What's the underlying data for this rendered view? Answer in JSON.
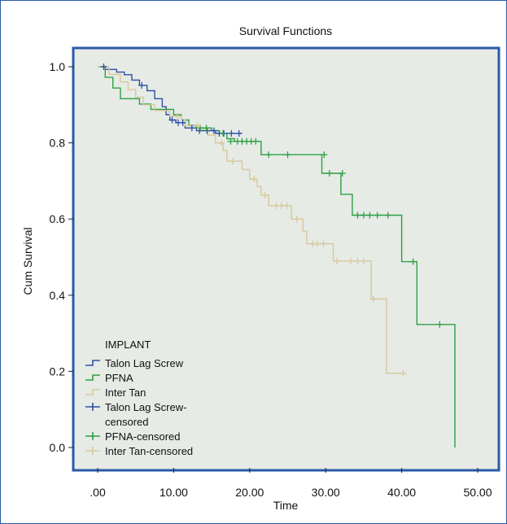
{
  "chart_data": {
    "type": "line",
    "subtype": "kaplan-meier-step",
    "title": "Survival Functions",
    "xlabel": "Time",
    "ylabel": "Cum Survival",
    "xlim": [
      0,
      50
    ],
    "ylim": [
      0,
      1.0
    ],
    "x_ticks": [
      0,
      10,
      20,
      30,
      40,
      50
    ],
    "x_tick_labels": [
      ".00",
      "10.00",
      "20.00",
      "30.00",
      "40.00",
      "50.00"
    ],
    "y_ticks": [
      0,
      0.2,
      0.4,
      0.6,
      0.8,
      1.0
    ],
    "y_tick_labels": [
      "0.0",
      "0.2",
      "0.4",
      "0.6",
      "0.8",
      "1.0"
    ],
    "grid": false,
    "legend_position": "bottom-left",
    "legend_title": "IMPLANT",
    "legend_entries": [
      {
        "label": "Talon Lag Screw",
        "kind": "step",
        "color": "#2f4fa8"
      },
      {
        "label": "PFNA",
        "kind": "step",
        "color": "#2ea043"
      },
      {
        "label": "Inter Tan",
        "kind": "step",
        "color": "#d8c79a"
      },
      {
        "label": "Talon Lag Screw-censored",
        "kind": "censor",
        "color": "#2f4fa8"
      },
      {
        "label": "PFNA-censored",
        "kind": "censor",
        "color": "#2ea043"
      },
      {
        "label": "Inter Tan-censored",
        "kind": "censor",
        "color": "#d8c79a"
      }
    ],
    "plot_background": "#e6ebe6",
    "plot_border_color": "#2a5aa8",
    "series": [
      {
        "name": "Talon Lag Screw",
        "color": "#2f4fa8",
        "steps": [
          [
            0.5,
            1.0
          ],
          [
            1,
            0.993
          ],
          [
            2.5,
            0.986
          ],
          [
            3.5,
            0.979
          ],
          [
            4.5,
            0.965
          ],
          [
            5.5,
            0.951
          ],
          [
            6.5,
            0.937
          ],
          [
            7.5,
            0.916
          ],
          [
            8.5,
            0.895
          ],
          [
            9,
            0.874
          ],
          [
            9.5,
            0.86
          ],
          [
            10.3,
            0.853
          ],
          [
            11.5,
            0.839
          ],
          [
            13,
            0.832
          ],
          [
            14,
            0.832
          ],
          [
            15.5,
            0.825
          ],
          [
            19,
            0.825
          ]
        ],
        "censored": [
          [
            0.8,
            1.0
          ],
          [
            5.8,
            0.951
          ],
          [
            9.8,
            0.86
          ],
          [
            10.6,
            0.853
          ],
          [
            11.2,
            0.853
          ],
          [
            12.4,
            0.839
          ],
          [
            13.4,
            0.832
          ],
          [
            14.4,
            0.832
          ],
          [
            15.3,
            0.832
          ],
          [
            16.0,
            0.825
          ],
          [
            16.6,
            0.825
          ],
          [
            17.6,
            0.825
          ],
          [
            18.6,
            0.825
          ]
        ]
      },
      {
        "name": "PFNA",
        "color": "#2ea043",
        "steps": [
          [
            0,
            1.0
          ],
          [
            1,
            0.972
          ],
          [
            2,
            0.944
          ],
          [
            3,
            0.916
          ],
          [
            5.5,
            0.902
          ],
          [
            7,
            0.888
          ],
          [
            10,
            0.874
          ],
          [
            11,
            0.86
          ],
          [
            12,
            0.846
          ],
          [
            13,
            0.839
          ],
          [
            15,
            0.832
          ],
          [
            16,
            0.825
          ],
          [
            17,
            0.811
          ],
          [
            18,
            0.804
          ],
          [
            21.5,
            0.769
          ],
          [
            29.5,
            0.72
          ],
          [
            32,
            0.665
          ],
          [
            33.5,
            0.61
          ],
          [
            40,
            0.488
          ],
          [
            42,
            0.323
          ],
          [
            47,
            0.0
          ]
        ],
        "censored": [
          [
            13.5,
            0.839
          ],
          [
            14.3,
            0.839
          ],
          [
            16.5,
            0.825
          ],
          [
            17.5,
            0.804
          ],
          [
            18.4,
            0.804
          ],
          [
            19.0,
            0.804
          ],
          [
            19.6,
            0.804
          ],
          [
            20.2,
            0.804
          ],
          [
            20.8,
            0.804
          ],
          [
            22.5,
            0.769
          ],
          [
            25.0,
            0.769
          ],
          [
            29.8,
            0.769
          ],
          [
            30.5,
            0.72
          ],
          [
            32.2,
            0.72
          ],
          [
            34.2,
            0.61
          ],
          [
            35.0,
            0.61
          ],
          [
            35.8,
            0.61
          ],
          [
            36.8,
            0.61
          ],
          [
            38.2,
            0.61
          ],
          [
            41.5,
            0.488
          ],
          [
            45.0,
            0.323
          ]
        ]
      },
      {
        "name": "Inter Tan",
        "color": "#d8c79a",
        "steps": [
          [
            0,
            1.0
          ],
          [
            1.5,
            0.98
          ],
          [
            3,
            0.96
          ],
          [
            4,
            0.94
          ],
          [
            5,
            0.92
          ],
          [
            6,
            0.9
          ],
          [
            7.5,
            0.885
          ],
          [
            9.5,
            0.87
          ],
          [
            11,
            0.86
          ],
          [
            11.5,
            0.845
          ],
          [
            13.5,
            0.835
          ],
          [
            14.5,
            0.82
          ],
          [
            15.5,
            0.8
          ],
          [
            16.5,
            0.78
          ],
          [
            17,
            0.752
          ],
          [
            19,
            0.73
          ],
          [
            20,
            0.705
          ],
          [
            21,
            0.685
          ],
          [
            21.5,
            0.663
          ],
          [
            22.5,
            0.635
          ],
          [
            25.5,
            0.6
          ],
          [
            27,
            0.568
          ],
          [
            27.5,
            0.535
          ],
          [
            31,
            0.49
          ],
          [
            36,
            0.39
          ],
          [
            38,
            0.195
          ],
          [
            40.2,
            0.195
          ]
        ],
        "censored": [
          [
            10.5,
            0.87
          ],
          [
            13.2,
            0.845
          ],
          [
            16.3,
            0.8
          ],
          [
            17.8,
            0.752
          ],
          [
            20.6,
            0.705
          ],
          [
            22,
            0.663
          ],
          [
            23.5,
            0.635
          ],
          [
            24.2,
            0.635
          ],
          [
            24.9,
            0.635
          ],
          [
            26.2,
            0.6
          ],
          [
            28.3,
            0.535
          ],
          [
            28.9,
            0.535
          ],
          [
            29.7,
            0.535
          ],
          [
            31.5,
            0.49
          ],
          [
            33.3,
            0.49
          ],
          [
            34.2,
            0.49
          ],
          [
            35.0,
            0.49
          ],
          [
            36.3,
            0.39
          ],
          [
            40.2,
            0.195
          ]
        ]
      }
    ]
  }
}
